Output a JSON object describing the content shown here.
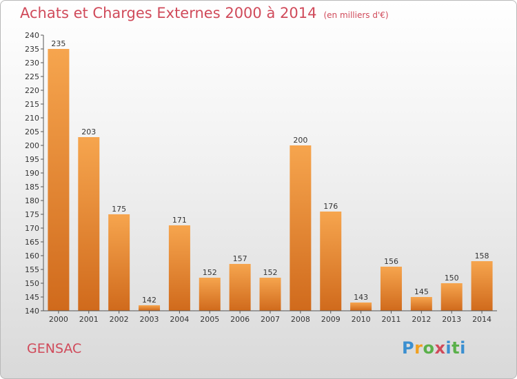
{
  "header": {
    "title": "Achats et Charges Externes 2000 à 2014",
    "unit": "(en milliers d'€)"
  },
  "footer": {
    "commune": "GENSAC",
    "logo_text": "Proxiti"
  },
  "colors": {
    "title": "#d04a5a",
    "bar_light": "#f6a54e",
    "bar_dark": "#d06a1c"
  },
  "chart_data": {
    "type": "bar",
    "title": "Achats et Charges Externes 2000 à 2014",
    "subtitle": "(en milliers d'€)",
    "categories": [
      "2000",
      "2001",
      "2002",
      "2003",
      "2004",
      "2005",
      "2006",
      "2007",
      "2008",
      "2009",
      "2010",
      "2011",
      "2012",
      "2013",
      "2014"
    ],
    "values": [
      235,
      203,
      175,
      142,
      171,
      152,
      157,
      152,
      200,
      176,
      143,
      156,
      145,
      150,
      158
    ],
    "ylim": [
      140,
      240
    ],
    "ytick_step": 5,
    "grid": false,
    "legend": "none"
  }
}
